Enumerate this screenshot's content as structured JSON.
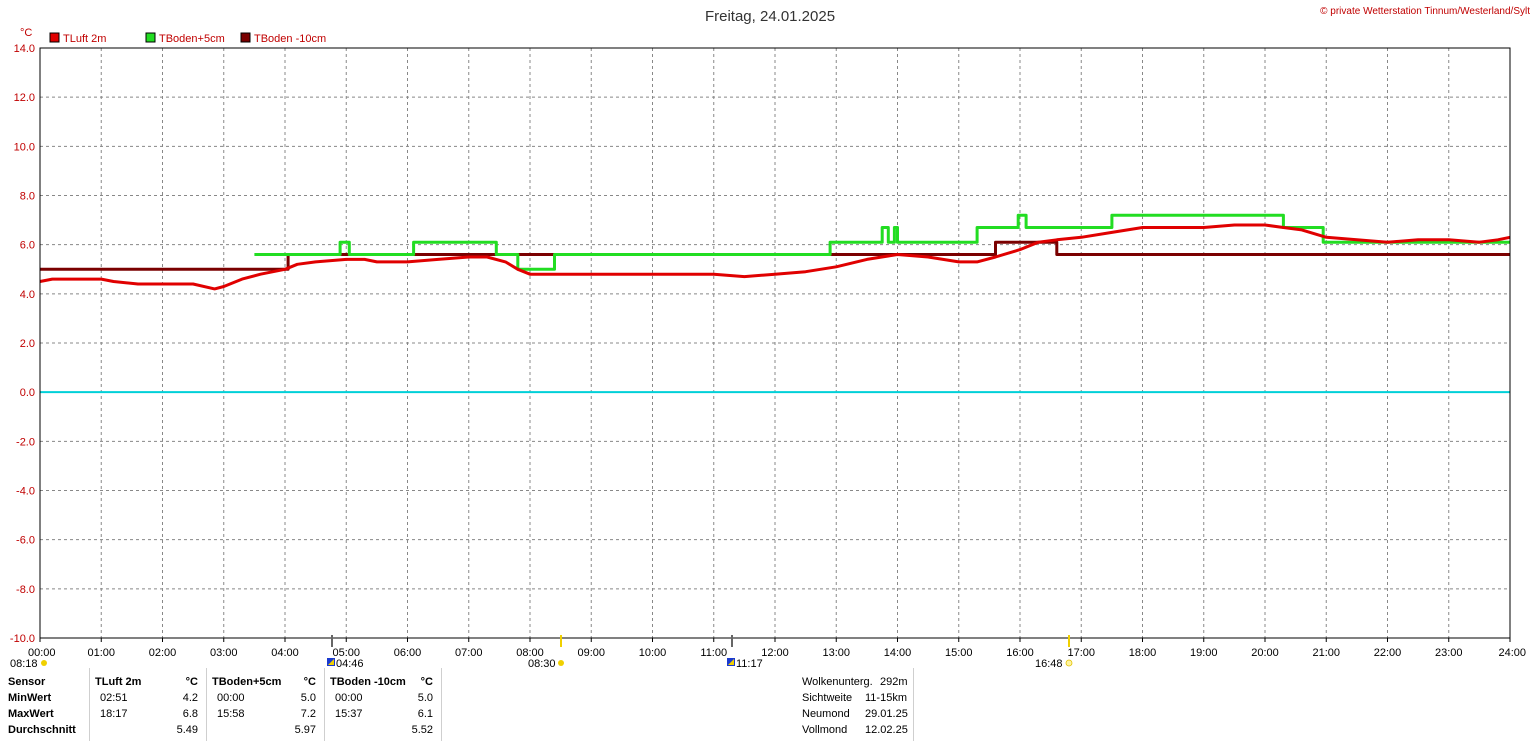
{
  "title": "Freitag, 24.01.2025",
  "copyright": "© private Wetterstation Tinnum/Westerland/Sylt",
  "unit": "°C",
  "colors": {
    "tluft": "#e00000",
    "tboden5": "#22dd22",
    "tboden10": "#7a0000",
    "zero_line": "#00d0d8",
    "grid": "#888888"
  },
  "chart_data": {
    "type": "line",
    "xlim": [
      0,
      24
    ],
    "ylim": [
      -10,
      14
    ],
    "yticks": [
      "14.0",
      "12.0",
      "10.0",
      "8.0",
      "6.0",
      "4.0",
      "2.0",
      "0.0",
      "-2.0",
      "-4.0",
      "-6.0",
      "-8.0",
      "-10.0"
    ],
    "xticks": [
      "00:00",
      "01:00",
      "02:00",
      "03:00",
      "04:00",
      "05:00",
      "06:00",
      "07:00",
      "08:00",
      "09:00",
      "10:00",
      "11:00",
      "12:00",
      "13:00",
      "14:00",
      "15:00",
      "16:00",
      "17:00",
      "18:00",
      "19:00",
      "20:00",
      "21:00",
      "22:00",
      "23:00",
      "24:00"
    ],
    "grid": true,
    "legend_position": "top-left",
    "series": [
      {
        "name": "TLuft 2m",
        "x": [
          0,
          0.2,
          1.0,
          1.2,
          1.6,
          2.0,
          2.5,
          2.85,
          3.0,
          3.3,
          3.6,
          4.0,
          4.2,
          4.5,
          5.0,
          5.3,
          5.5,
          6.0,
          6.5,
          7.0,
          7.3,
          7.6,
          7.8,
          8.0,
          8.5,
          9.0,
          10.0,
          11.0,
          11.5,
          12.0,
          12.5,
          13.0,
          13.5,
          14.0,
          14.5,
          15.0,
          15.3,
          15.6,
          16.0,
          16.3,
          16.6,
          17.0,
          17.5,
          18.0,
          18.3,
          18.6,
          19.0,
          19.5,
          20.0,
          20.3,
          20.6,
          21.0,
          21.5,
          22.0,
          22.5,
          23.0,
          23.5,
          23.8,
          24.0
        ],
        "values": [
          4.5,
          4.6,
          4.6,
          4.5,
          4.4,
          4.4,
          4.4,
          4.2,
          4.3,
          4.6,
          4.8,
          5.0,
          5.2,
          5.3,
          5.4,
          5.4,
          5.3,
          5.3,
          5.4,
          5.5,
          5.5,
          5.3,
          5.0,
          4.8,
          4.8,
          4.8,
          4.8,
          4.8,
          4.7,
          4.8,
          4.9,
          5.1,
          5.4,
          5.6,
          5.5,
          5.3,
          5.3,
          5.5,
          5.8,
          6.1,
          6.2,
          6.3,
          6.5,
          6.7,
          6.7,
          6.7,
          6.7,
          6.8,
          6.8,
          6.7,
          6.6,
          6.3,
          6.2,
          6.1,
          6.2,
          6.2,
          6.1,
          6.2,
          6.3
        ]
      },
      {
        "name": "TBoden+5cm",
        "x": [
          0,
          3.5,
          3.5,
          4.9,
          4.9,
          5.05,
          5.05,
          6.1,
          6.1,
          7.45,
          7.45,
          7.8,
          7.8,
          8.4,
          8.4,
          12.9,
          12.9,
          13.75,
          13.75,
          13.85,
          13.85,
          13.95,
          13.95,
          14.0,
          14.0,
          15.3,
          15.3,
          15.97,
          15.97,
          16.1,
          16.1,
          17.5,
          17.5,
          20.3,
          20.3,
          20.95,
          20.95,
          24
        ],
        "values": [
          null,
          null,
          5.6,
          5.6,
          6.1,
          6.1,
          5.6,
          5.6,
          6.1,
          6.1,
          5.6,
          5.6,
          5.0,
          5.0,
          5.6,
          5.6,
          6.1,
          6.1,
          6.7,
          6.7,
          6.1,
          6.1,
          6.7,
          6.7,
          6.1,
          6.1,
          6.7,
          6.7,
          7.2,
          7.2,
          6.7,
          6.7,
          7.2,
          7.2,
          6.7,
          6.7,
          6.1,
          6.1
        ]
      },
      {
        "name": "TBoden -10cm",
        "x": [
          0,
          4.05,
          4.05,
          15.6,
          15.6,
          16.6,
          16.6,
          24
        ],
        "values": [
          5.0,
          5.0,
          5.6,
          5.6,
          6.1,
          6.1,
          5.6,
          5.6
        ]
      }
    ]
  },
  "astro": {
    "moonset": "08:18",
    "moonrise": "04:46",
    "sunrise": "08:30",
    "moon_transit": "11:17",
    "sunset": "16:48"
  },
  "stats": {
    "sensor_label": "Sensor",
    "row_labels": [
      "MinWert",
      "MaxWert",
      "Durchschnitt"
    ],
    "columns": [
      {
        "name": "TLuft 2m",
        "unit": "°C",
        "min_time": "02:51",
        "min": "4.2",
        "max_time": "18:17",
        "max": "6.8",
        "avg": "5.49"
      },
      {
        "name": "TBoden+5cm",
        "unit": "°C",
        "min_time": "00:00",
        "min": "5.0",
        "max_time": "15:58",
        "max": "7.2",
        "avg": "5.97"
      },
      {
        "name": "TBoden -10cm",
        "unit": "°C",
        "min_time": "00:00",
        "min": "5.0",
        "max_time": "15:37",
        "max": "6.1",
        "avg": "5.52"
      }
    ],
    "info": [
      {
        "label": "Wolkenunterg.",
        "value": "292m"
      },
      {
        "label": "Sichtweite",
        "value": "11-15km"
      },
      {
        "label": "Neumond",
        "value": "29.01.25"
      },
      {
        "label": "Vollmond",
        "value": "12.02.25"
      }
    ]
  }
}
